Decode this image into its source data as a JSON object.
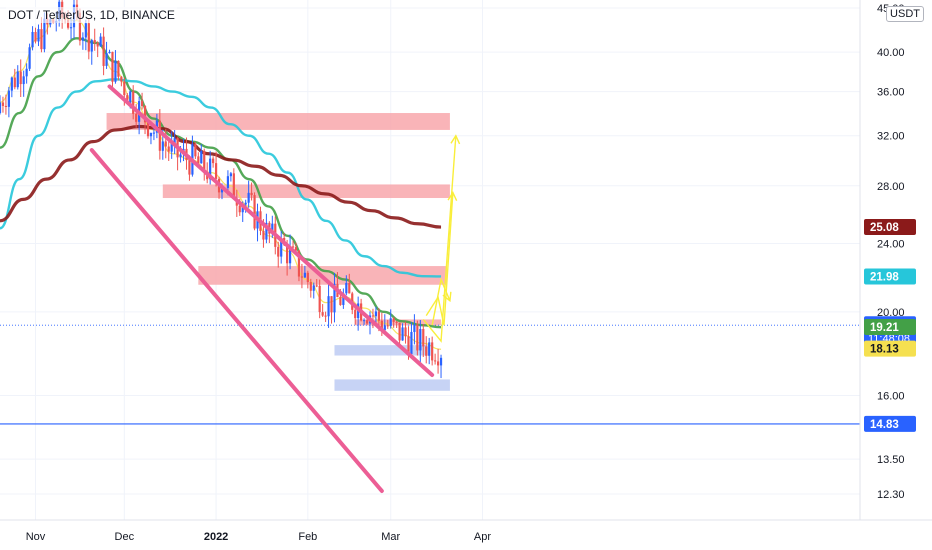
{
  "header": {
    "symbol_line": "DOT / TetherUS, 1D, BINANCE",
    "currency": "USDT"
  },
  "colors": {
    "up": "#2962ff",
    "down": "#ef5350",
    "ma_fast": "#f5e050",
    "ma_green": "#43a047",
    "ma_cyan": "#26c6da",
    "ma_maroon": "#8b1a1a",
    "channel": "#ec5e95",
    "zone_red": "#f7a1a6",
    "zone_blue": "#b9c8f2",
    "hline": "#2962ff",
    "arrows": "#f9ee3a"
  },
  "chart_data": {
    "type": "candlestick",
    "title": "DOT / TetherUS, 1D, BINANCE",
    "x_tick_labels": [
      "Nov",
      "Dec",
      "2022",
      "Feb",
      "Mar",
      "Apr"
    ],
    "y_tick_labels": [
      "45.00",
      "40.00",
      "36.00",
      "32.00",
      "28.00",
      "24.00",
      "20.00",
      "16.00",
      "13.50",
      "12.30"
    ],
    "y_scale": "log",
    "ylim": [
      11.5,
      46
    ],
    "date_range": [
      "2021-10-20",
      "2022-03-20"
    ],
    "price_labels": [
      {
        "value": "25.08",
        "color": "#8b1a1a",
        "text_color": "#ffffff"
      },
      {
        "value": "21.98",
        "color": "#26c6da",
        "text_color": "#ffffff"
      },
      {
        "value": "19.30",
        "sub": "11:48:08",
        "color": "#2962ff",
        "text_color": "#ffffff"
      },
      {
        "value": "19.21",
        "color": "#43a047",
        "text_color": "#ffffff"
      },
      {
        "value": "18.13",
        "color": "#f5e050",
        "text_color": "#131722"
      },
      {
        "value": "14.83",
        "color": "#2962ff",
        "text_color": "#ffffff"
      }
    ],
    "series": [
      {
        "name": "EMA fast",
        "color": "#f5e050",
        "values": [
          35.0,
          38.0,
          41.5,
          44.0,
          43.5,
          41.0,
          38.0,
          35.0,
          32.5,
          30.5,
          30.0,
          29.0,
          28.0,
          26.5,
          24.5,
          23.5,
          21.8,
          20.5,
          20.8,
          20.2,
          19.4,
          18.8,
          18.4,
          18.1
        ]
      },
      {
        "name": "EMA green",
        "color": "#43a047",
        "values": [
          31.0,
          34.0,
          37.5,
          40.0,
          41.5,
          41.0,
          39.0,
          36.0,
          33.5,
          32.0,
          31.5,
          31.0,
          30.0,
          28.5,
          26.5,
          24.5,
          23.0,
          22.3,
          21.8,
          21.0,
          20.0,
          19.5,
          19.3,
          19.2
        ]
      },
      {
        "name": "EMA cyan",
        "color": "#26c6da",
        "values": [
          25.0,
          28.5,
          32.0,
          34.5,
          36.0,
          37.0,
          37.2,
          37.0,
          36.5,
          36.0,
          35.5,
          34.5,
          33.0,
          32.0,
          30.5,
          29.0,
          27.0,
          25.5,
          24.2,
          23.2,
          22.6,
          22.2,
          22.0,
          21.98
        ]
      },
      {
        "name": "EMA maroon",
        "color": "#8b1a1a",
        "values": [
          25.5,
          27.0,
          28.5,
          30.0,
          31.5,
          32.5,
          32.8,
          32.6,
          31.5,
          30.5,
          30.0,
          29.5,
          28.8,
          28.0,
          27.4,
          26.8,
          26.2,
          25.7,
          25.3,
          25.08
        ]
      }
    ],
    "drawings": {
      "channel_upper": {
        "from": [
          "2021-11-26",
          36.5
        ],
        "to": [
          "2022-03-15",
          16.9
        ]
      },
      "channel_lower": {
        "from": [
          "2021-11-20",
          30.8
        ],
        "to": [
          "2022-02-26",
          12.4
        ]
      },
      "horizontal_line": 14.83,
      "resistance_zones": [
        {
          "from": "2021-11-25",
          "to": "2022-03-21",
          "low": 32.5,
          "high": 34.0
        },
        {
          "from": "2021-12-14",
          "to": "2022-03-21",
          "low": 27.1,
          "high": 28.1
        },
        {
          "from": "2021-12-26",
          "to": "2022-03-20",
          "low": 21.5,
          "high": 22.6
        },
        {
          "from": "2022-02-17",
          "to": "2022-03-18",
          "low": 19.3,
          "high": 19.6
        }
      ],
      "support_zones": [
        {
          "from": "2022-02-10",
          "to": "2022-03-14",
          "low": 17.8,
          "high": 18.3
        },
        {
          "from": "2022-02-10",
          "to": "2022-03-21",
          "low": 16.2,
          "high": 16.7
        }
      ]
    }
  }
}
